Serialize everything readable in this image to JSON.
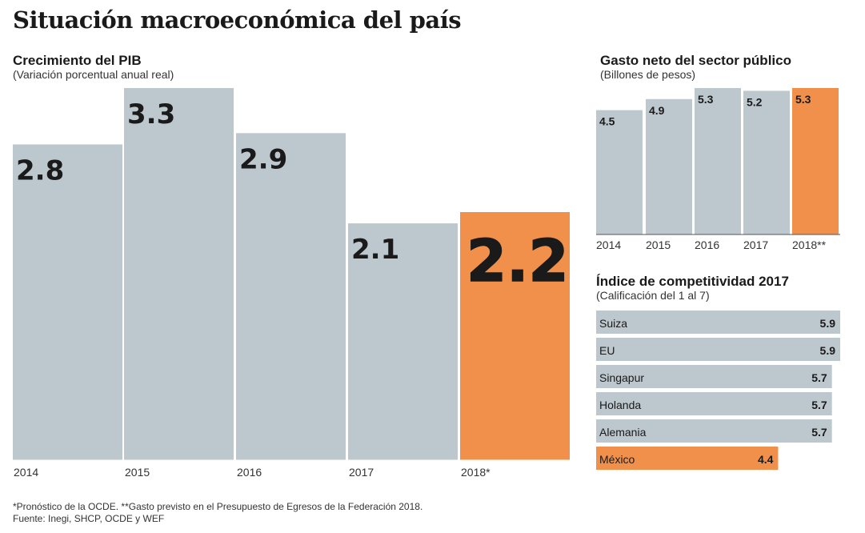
{
  "page": {
    "title": "Situación macroeconómica del país",
    "footnote_1": "*Pronóstico de la OCDE. **Gasto previsto en el Presupuesto de Egresos de la Federación 2018.",
    "footnote_2": "Fuente: Inegi, SHCP, OCDE y WEF"
  },
  "colors": {
    "bar": "#bcc7ce",
    "highlight": "#f0904a",
    "text": "#1a1a1a",
    "axis": "#555555"
  },
  "chart_data": [
    {
      "type": "bar",
      "title": "Crecimiento del PIB",
      "subtitle": "(Variación porcentual anual real)",
      "categories": [
        "2014",
        "2015",
        "2016",
        "2017",
        "2018*"
      ],
      "values": [
        2.8,
        3.3,
        2.9,
        2.1,
        2.2
      ],
      "value_labels": [
        "2.8",
        "3.3",
        "2.9",
        "2.1",
        "2.2"
      ],
      "highlight_index": 4,
      "xlabel": "",
      "ylabel": ""
    },
    {
      "type": "bar",
      "title": "Gasto neto del sector público",
      "subtitle": "(Billones de pesos)",
      "categories": [
        "2014",
        "2015",
        "2016",
        "2017",
        "2018**"
      ],
      "values": [
        4.5,
        4.9,
        5.3,
        5.2,
        5.3
      ],
      "value_labels": [
        "4.5",
        "4.9",
        "5.3",
        "5.2",
        "5.3"
      ],
      "highlight_index": 4,
      "xlabel": "",
      "ylabel": ""
    },
    {
      "type": "bar",
      "orientation": "horizontal",
      "title": "Índice de competitividad 2017",
      "subtitle": "(Calificación del 1 al 7)",
      "categories": [
        "Suiza",
        "EU",
        "Singapur",
        "Holanda",
        "Alemania",
        "México"
      ],
      "values": [
        5.9,
        5.9,
        5.7,
        5.7,
        5.7,
        4.4
      ],
      "value_labels": [
        "5.9",
        "5.9",
        "5.7",
        "5.7",
        "5.7",
        "4.4"
      ],
      "highlight_index": 5,
      "xlabel": "",
      "ylabel": ""
    }
  ]
}
